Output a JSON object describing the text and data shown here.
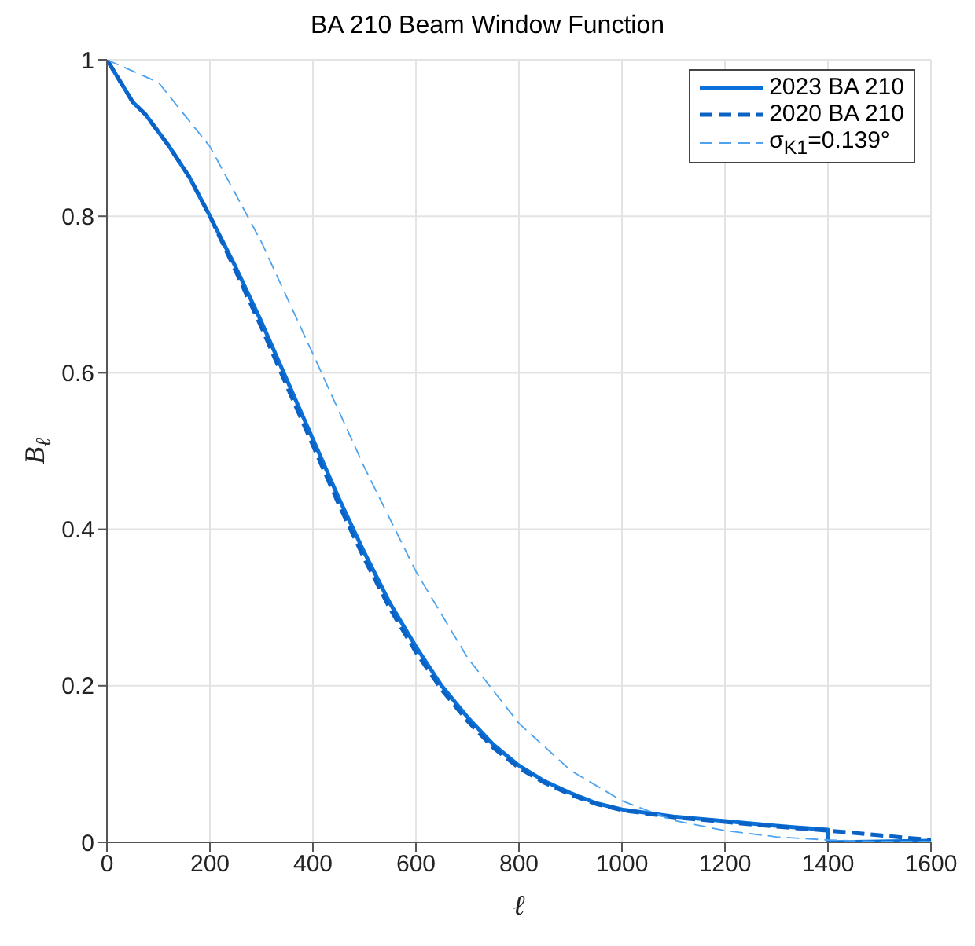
{
  "chart_data": {
    "type": "line",
    "title": "BA 210 Beam Window Function",
    "xlabel": "ℓ",
    "ylabel": "B$_{ℓ}$",
    "xlim": [
      0,
      1600
    ],
    "ylim": [
      0,
      1
    ],
    "xticks": [
      0,
      200,
      400,
      600,
      800,
      1000,
      1200,
      1400,
      1600
    ],
    "yticks": [
      0,
      0.2,
      0.4,
      0.6,
      0.8,
      1
    ],
    "grid": true,
    "legend": "top right",
    "marker": "none",
    "series": [
      {
        "name": "2023 BA 210",
        "color": "#0a6fd6",
        "line_style": "solid",
        "x": [
          0,
          50,
          75,
          120,
          160,
          200,
          250,
          300,
          350,
          400,
          450,
          500,
          550,
          600,
          650,
          700,
          750,
          800,
          850,
          900,
          950,
          1000,
          1100,
          1200,
          1300,
          1400,
          1400,
          1600
        ],
        "values": [
          1,
          0.946,
          0.93,
          0.89,
          0.85,
          0.8,
          0.735,
          0.665,
          0.59,
          0.515,
          0.44,
          0.37,
          0.305,
          0.25,
          0.2,
          0.16,
          0.125,
          0.098,
          0.078,
          0.063,
          0.05,
          0.042,
          0.033,
          0.027,
          0.021,
          0.016,
          0,
          0.002
        ]
      },
      {
        "name": "2020 BA 210",
        "color": "#0a62c4",
        "line_style": "dashed",
        "x": [
          0,
          50,
          75,
          120,
          160,
          200,
          250,
          300,
          350,
          400,
          450,
          500,
          550,
          600,
          650,
          700,
          750,
          800,
          850,
          900,
          950,
          1000,
          1100,
          1200,
          1300,
          1400,
          1500,
          1600
        ],
        "values": [
          1,
          0.946,
          0.93,
          0.89,
          0.85,
          0.8,
          0.73,
          0.658,
          0.582,
          0.507,
          0.432,
          0.362,
          0.298,
          0.243,
          0.195,
          0.155,
          0.121,
          0.095,
          0.076,
          0.061,
          0.049,
          0.041,
          0.032,
          0.026,
          0.02,
          0.015,
          0.009,
          0.003
        ]
      },
      {
        "name": "σ$_{K1}$=0.139°",
        "color": "#4da3f0",
        "line_style": "dashed",
        "x": [
          0,
          100,
          200,
          300,
          400,
          500,
          600,
          700,
          800,
          900,
          1000,
          1100,
          1200,
          1300,
          1400,
          1500,
          1600
        ],
        "values": [
          1,
          0.971,
          0.889,
          0.767,
          0.624,
          0.479,
          0.346,
          0.236,
          0.152,
          0.092,
          0.053,
          0.028,
          0.015,
          0.007,
          0.003,
          0.001,
          0.001
        ]
      }
    ]
  }
}
